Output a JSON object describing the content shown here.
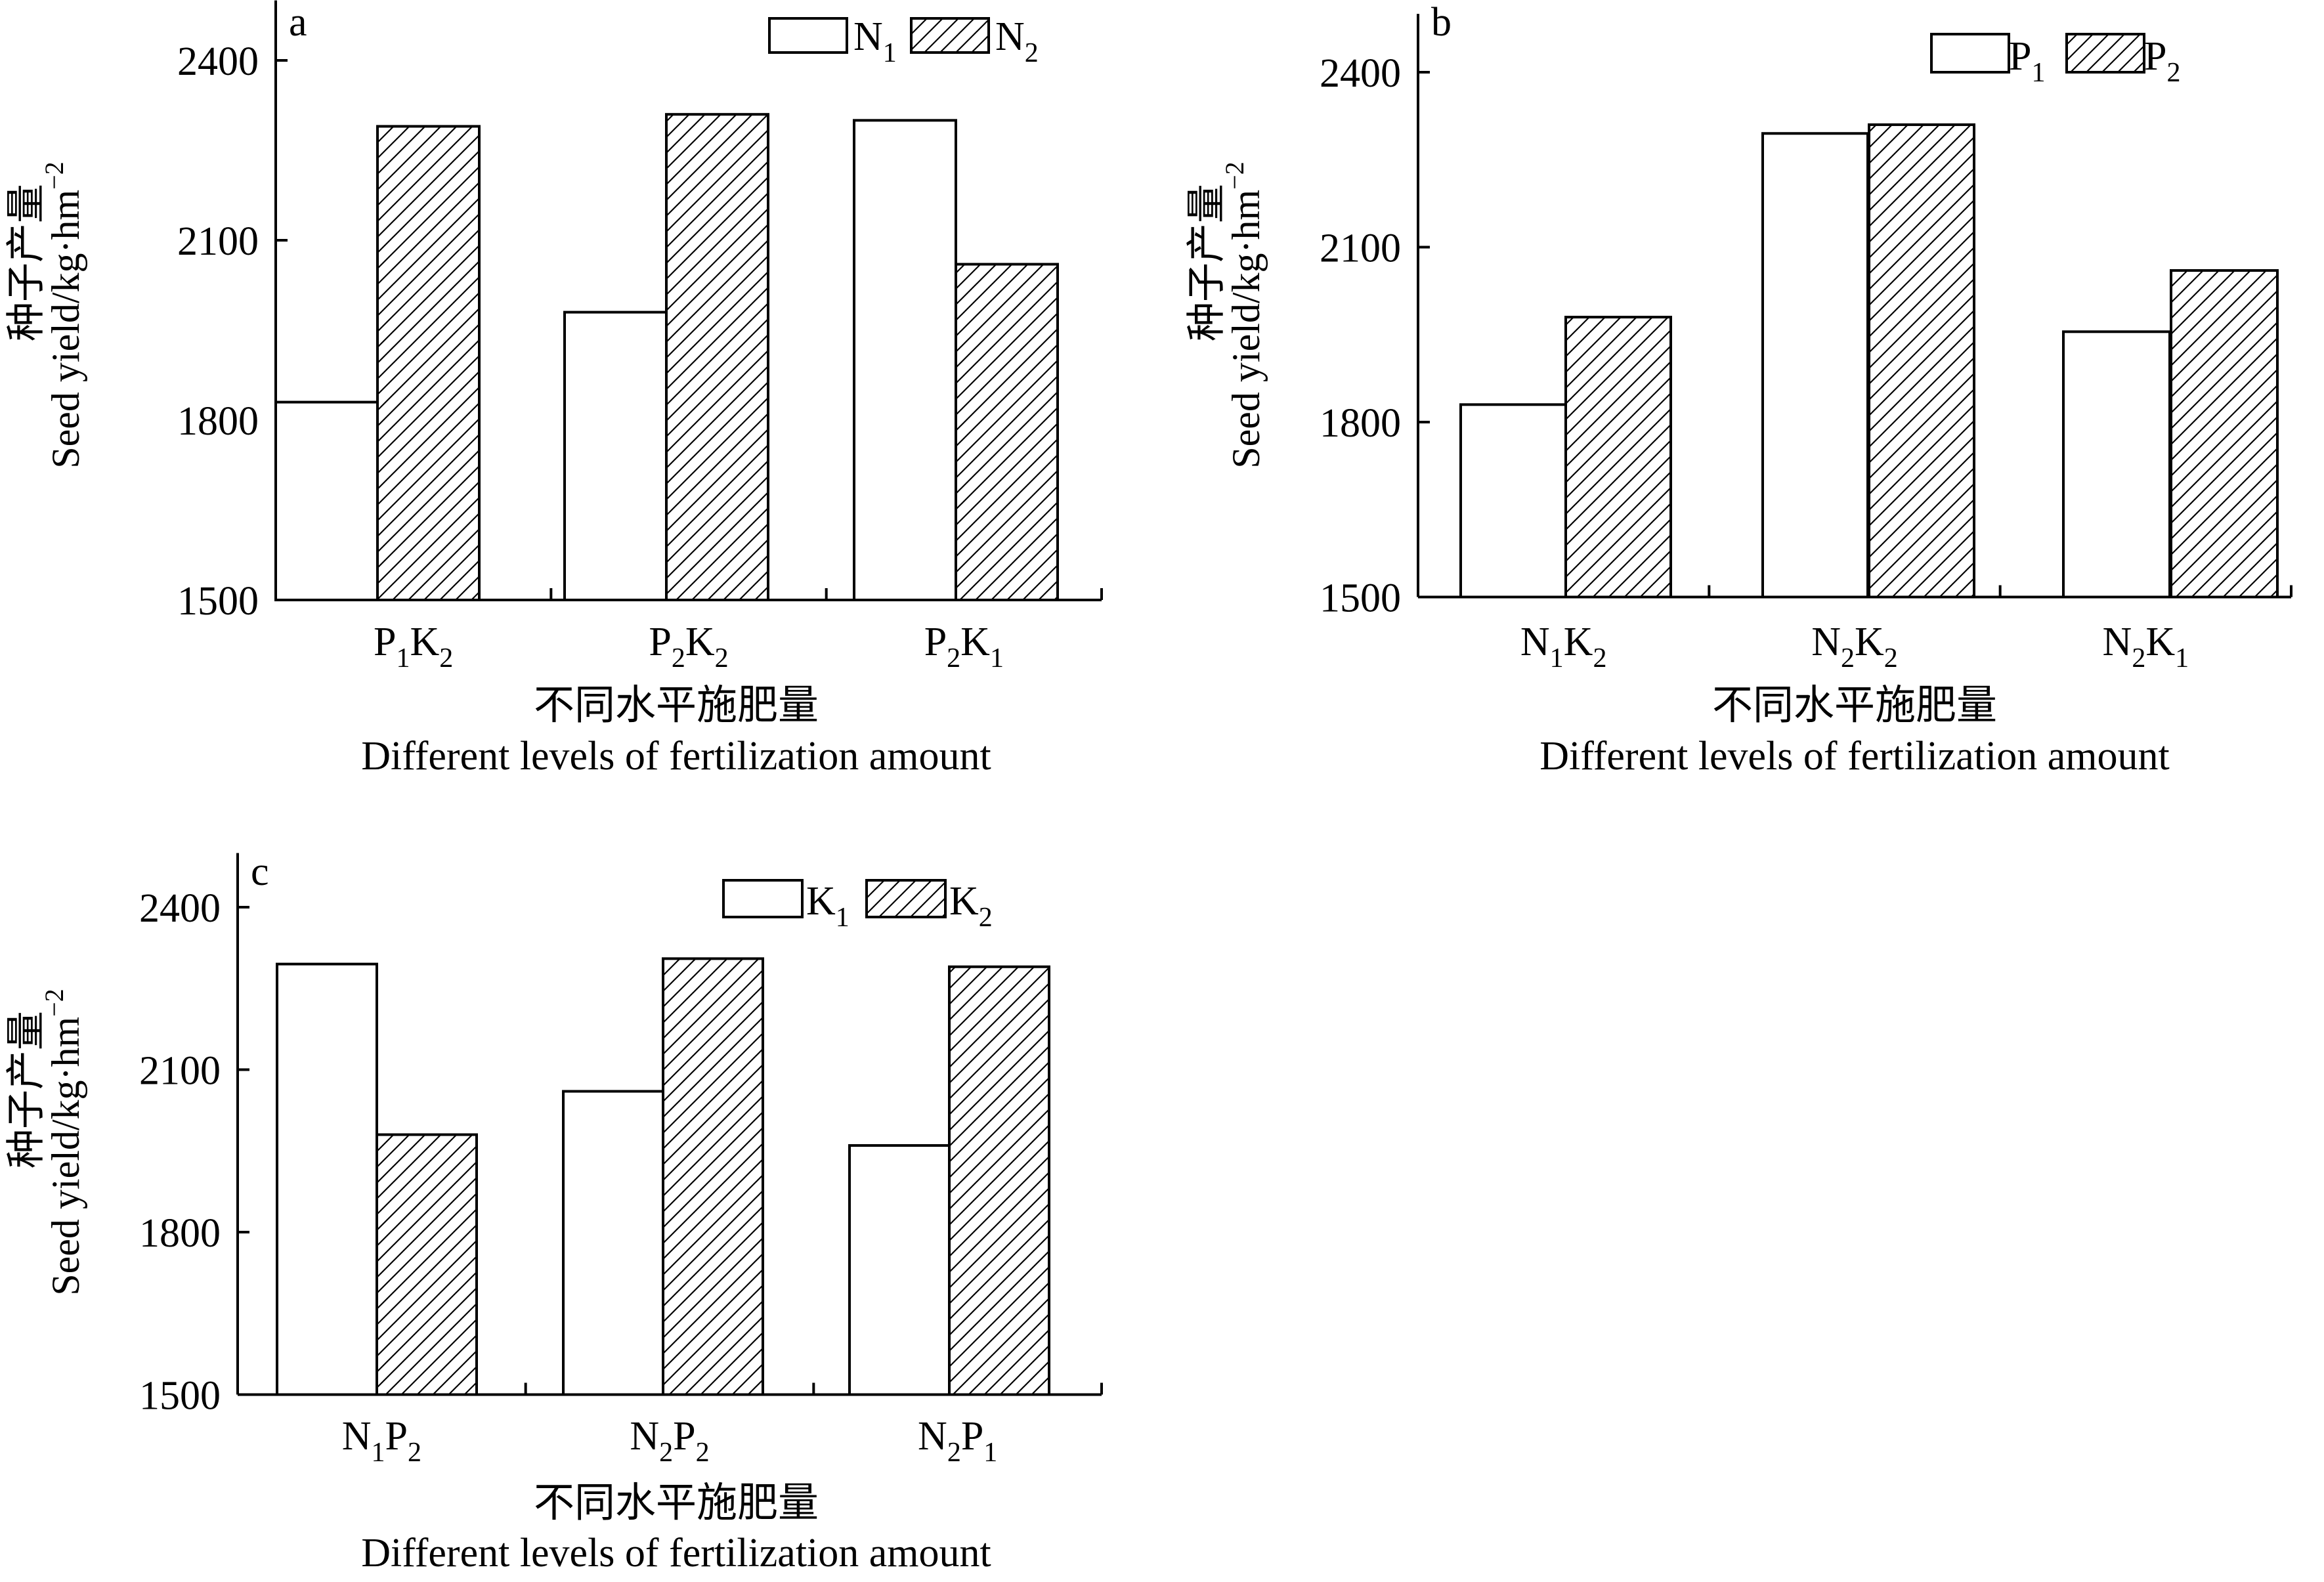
{
  "figure": {
    "y_axis_label_cn": "种子产量",
    "y_axis_label_en_prefix": "Seed yield/kg·hm",
    "y_axis_label_en_sup": "−2",
    "x_axis_label_cn": "不同水平施肥量",
    "x_axis_label_en": "Different levels of fertilization amount"
  },
  "chart_data": [
    {
      "panel": "a",
      "type": "bar",
      "categories": [
        {
          "parts": [
            [
              "P",
              "1"
            ],
            [
              "K",
              "2"
            ]
          ]
        },
        {
          "parts": [
            [
              "P",
              "2"
            ],
            [
              "K",
              "2"
            ]
          ]
        },
        {
          "parts": [
            [
              "P",
              "2"
            ],
            [
              "K",
              "1"
            ]
          ]
        }
      ],
      "series": [
        {
          "name_base": "N",
          "name_sub": "1",
          "fill": "open",
          "values": [
            1830,
            1980,
            2300
          ]
        },
        {
          "name_base": "N",
          "name_sub": "2",
          "fill": "hatched",
          "values": [
            2290,
            2310,
            2060
          ]
        }
      ],
      "ylim": [
        1500,
        2500
      ],
      "yticks": [
        1500,
        1800,
        2100,
        2400
      ],
      "ylabel": "种子产量 Seed yield/kg·hm−2",
      "xlabel": "不同水平施肥量 Different levels of fertilization amount",
      "legend": "top-right"
    },
    {
      "panel": "b",
      "type": "bar",
      "categories": [
        {
          "parts": [
            [
              "N",
              "1"
            ],
            [
              "K",
              "2"
            ]
          ]
        },
        {
          "parts": [
            [
              "N",
              "2"
            ],
            [
              "K",
              "2"
            ]
          ]
        },
        {
          "parts": [
            [
              "N",
              "2"
            ],
            [
              "K",
              "1"
            ]
          ]
        }
      ],
      "series": [
        {
          "name_base": "P",
          "name_sub": "1",
          "fill": "open",
          "values": [
            1830,
            2295,
            1955
          ]
        },
        {
          "name_base": "P",
          "name_sub": "2",
          "fill": "hatched",
          "values": [
            1980,
            2310,
            2060
          ]
        }
      ],
      "ylim": [
        1500,
        2500
      ],
      "yticks": [
        1500,
        1800,
        2100,
        2400
      ],
      "ylabel": "种子产量 Seed yield/kg·hm−2",
      "xlabel": "不同水平施肥量 Different levels of fertilization amount",
      "legend": "top-right"
    },
    {
      "panel": "c",
      "type": "bar",
      "categories": [
        {
          "parts": [
            [
              "N",
              "1"
            ],
            [
              "P",
              "2"
            ]
          ]
        },
        {
          "parts": [
            [
              "N",
              "2"
            ],
            [
              "P",
              "2"
            ]
          ]
        },
        {
          "parts": [
            [
              "N",
              "2"
            ],
            [
              "P",
              "1"
            ]
          ]
        }
      ],
      "series": [
        {
          "name_base": "K",
          "name_sub": "1",
          "fill": "open",
          "values": [
            2295,
            2060,
            1960
          ]
        },
        {
          "name_base": "K",
          "name_sub": "2",
          "fill": "hatched",
          "values": [
            1980,
            2305,
            2290
          ]
        }
      ],
      "ylim": [
        1500,
        2500
      ],
      "yticks": [
        1500,
        1800,
        2100,
        2400
      ],
      "ylabel": "种子产量 Seed yield/kg·hm−2",
      "xlabel": "不同水平施肥量 Different levels of fertilization amount",
      "legend": "top-right"
    }
  ]
}
